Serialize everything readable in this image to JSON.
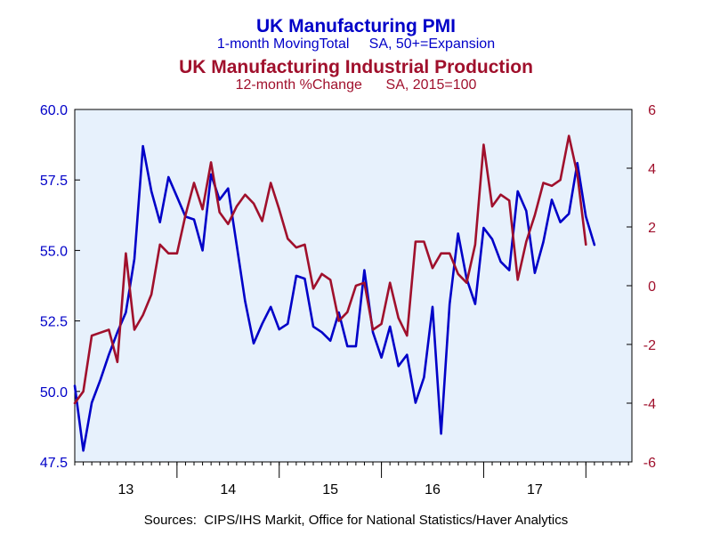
{
  "chart_data": {
    "type": "line",
    "title": "UK Manufacturing PMI",
    "subtitle": "1-month MovingTotal     SA, 50+=Expansion",
    "title2": "UK Manufacturing Industrial Production",
    "subtitle2": "12-month %Change      SA, 2015=100",
    "source": "Sources:  CIPS/IHS Markit, Office for National Statistics/Haver Analytics",
    "x_start": 2012.5,
    "x_step": 0.08333333,
    "xlim": [
      2012.5,
      2017.95
    ],
    "x_ticks": [
      2013,
      2014,
      2015,
      2016,
      2017
    ],
    "x_tick_labels": [
      "13",
      "14",
      "15",
      "16",
      "17"
    ],
    "y_left": {
      "lim": [
        47.5,
        60.0
      ],
      "ticks": [
        47.5,
        50.0,
        52.5,
        55.0,
        57.5,
        60.0
      ],
      "tick_labels": [
        "47.5",
        "50.0",
        "52.5",
        "55.0",
        "57.5",
        "60.0"
      ]
    },
    "y_right": {
      "lim": [
        -6,
        6
      ],
      "ticks": [
        -6,
        -4,
        -2,
        0,
        2,
        4,
        6
      ],
      "tick_labels": [
        "-6",
        "-4",
        "-2",
        "0",
        "2",
        "4",
        "6"
      ]
    },
    "series": [
      {
        "name": "UK Manufacturing PMI",
        "axis": "left",
        "color": "#0000c8",
        "values": [
          50.2,
          47.9,
          49.6,
          50.4,
          51.3,
          52.1,
          52.8,
          54.7,
          58.7,
          57.1,
          56.0,
          57.6,
          56.9,
          56.2,
          56.1,
          55.0,
          57.7,
          56.8,
          57.2,
          55.2,
          53.2,
          51.7,
          52.4,
          53.0,
          52.2,
          52.4,
          54.1,
          54.0,
          52.3,
          52.1,
          51.8,
          52.8,
          51.6,
          51.6,
          54.3,
          52.1,
          51.2,
          52.3,
          50.9,
          51.3,
          49.6,
          50.5,
          53.0,
          48.5,
          53.1,
          55.6,
          54.0,
          53.1,
          55.8,
          55.4,
          54.6,
          54.3,
          57.1,
          56.4,
          54.2,
          55.3,
          56.8,
          56.0,
          56.3,
          58.1,
          56.2,
          55.2
        ]
      },
      {
        "name": "UK Manufacturing Industrial Production",
        "axis": "right",
        "color": "#a0102c",
        "values": [
          -4.0,
          -3.6,
          -1.7,
          -1.6,
          -1.5,
          -2.6,
          1.1,
          -1.5,
          -1.0,
          -0.3,
          1.4,
          1.1,
          1.1,
          2.4,
          3.5,
          2.6,
          4.2,
          2.5,
          2.1,
          2.7,
          3.1,
          2.8,
          2.2,
          3.5,
          2.6,
          1.6,
          1.3,
          1.4,
          -0.1,
          0.4,
          0.2,
          -1.2,
          -0.9,
          0.0,
          0.1,
          -1.5,
          -1.3,
          0.1,
          -1.1,
          -1.7,
          1.5,
          1.5,
          0.6,
          1.1,
          1.1,
          0.4,
          0.1,
          1.4,
          4.8,
          2.7,
          3.1,
          2.9,
          0.2,
          1.5,
          2.4,
          3.5,
          3.4,
          3.6,
          5.1,
          3.8,
          1.4
        ]
      }
    ],
    "grid": false,
    "legend": "none"
  }
}
